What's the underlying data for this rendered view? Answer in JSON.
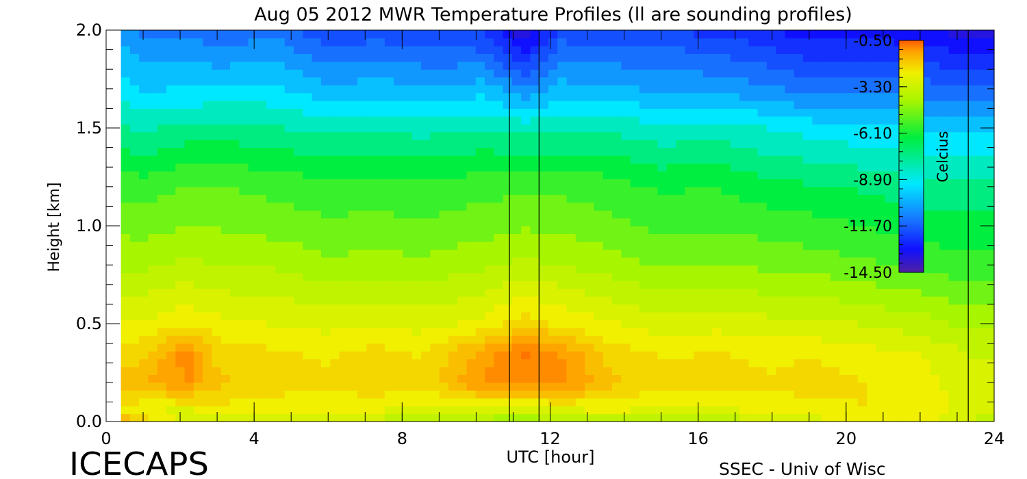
{
  "chart_data": {
    "type": "heatmap",
    "title": "Aug 05 2012 MWR Temperature Profiles (ll are sounding profiles)",
    "xlabel": "UTC [hour]",
    "ylabel": "Height [km]",
    "xlim": [
      0,
      24
    ],
    "ylim": [
      0,
      2.0
    ],
    "x_ticks": [
      0,
      4,
      8,
      12,
      16,
      20,
      24
    ],
    "x_tick_labels": [
      "0",
      "4",
      "8",
      "12",
      "16",
      "20",
      "24"
    ],
    "y_ticks": [
      0.0,
      0.5,
      1.0,
      1.5,
      2.0
    ],
    "y_tick_labels": [
      "0.0",
      "0.5",
      "1.0",
      "1.5",
      "2.0"
    ],
    "data_start_hour": 0.4,
    "colorbar": {
      "label": "Celcius",
      "placement": "top-right",
      "range": [
        -14.5,
        -0.5
      ],
      "ticks": [
        -0.5,
        -3.3,
        -6.1,
        -8.9,
        -11.7,
        -14.5
      ],
      "tick_labels": [
        "-0.50",
        "-3.30",
        "-6.10",
        "-8.90",
        "-11.70",
        "-14.50"
      ]
    },
    "sounding_times_hour": [
      10.9,
      11.7,
      23.3
    ],
    "height_km": [
      0.0,
      0.05,
      0.2,
      0.35,
      0.5,
      0.8,
      1.0,
      1.2,
      1.5,
      1.7,
      1.9,
      2.0
    ],
    "profiles": [
      {
        "hour": 0.4,
        "temp_c": [
          -1.6,
          -4.0,
          -2.9,
          -3.4,
          -4.2,
          -5.6,
          -6.2,
          -6.8,
          -8.3,
          -9.3,
          -10.0,
          -10.3
        ]
      },
      {
        "hour": 1.0,
        "temp_c": [
          -3.2,
          -4.3,
          -2.6,
          -3.3,
          -4.2,
          -5.6,
          -6.3,
          -6.9,
          -8.5,
          -9.6,
          -10.4,
          -10.8
        ]
      },
      {
        "hour": 2.2,
        "temp_c": [
          -4.5,
          -4.6,
          -1.9,
          -1.6,
          -3.8,
          -5.3,
          -6.0,
          -6.6,
          -8.2,
          -9.5,
          -10.3,
          -10.9
        ]
      },
      {
        "hour": 3.0,
        "temp_c": [
          -4.6,
          -4.0,
          -3.0,
          -3.3,
          -4.1,
          -5.5,
          -6.1,
          -6.6,
          -8.1,
          -9.5,
          -10.6,
          -11.2
        ]
      },
      {
        "hour": 4.5,
        "temp_c": [
          -4.8,
          -4.1,
          -3.4,
          -3.6,
          -4.3,
          -5.5,
          -6.3,
          -6.8,
          -8.3,
          -9.4,
          -10.3,
          -11.0
        ]
      },
      {
        "hour": 6.0,
        "temp_c": [
          -4.9,
          -4.1,
          -3.6,
          -3.8,
          -4.5,
          -5.9,
          -6.5,
          -7.0,
          -8.6,
          -10.0,
          -11.2,
          -11.9
        ]
      },
      {
        "hour": 7.2,
        "temp_c": [
          -5.0,
          -4.3,
          -3.2,
          -3.5,
          -4.3,
          -5.8,
          -6.4,
          -7.0,
          -8.5,
          -9.8,
          -11.0,
          -11.6
        ]
      },
      {
        "hour": 8.5,
        "temp_c": [
          -5.6,
          -4.6,
          -3.6,
          -3.8,
          -4.5,
          -5.9,
          -6.5,
          -7.1,
          -8.6,
          -10.0,
          -11.2,
          -11.8
        ]
      },
      {
        "hour": 10.2,
        "temp_c": [
          -5.8,
          -4.8,
          -1.8,
          -2.3,
          -4.1,
          -5.6,
          -6.3,
          -6.8,
          -8.4,
          -9.8,
          -11.3,
          -12.0
        ]
      },
      {
        "hour": 11.3,
        "temp_c": [
          -6.2,
          -5.0,
          -1.5,
          -1.3,
          -3.4,
          -5.3,
          -6.1,
          -6.8,
          -8.6,
          -10.6,
          -12.7,
          -13.6
        ]
      },
      {
        "hour": 12.3,
        "temp_c": [
          -5.6,
          -4.6,
          -1.7,
          -2.0,
          -3.8,
          -5.5,
          -6.2,
          -6.8,
          -8.5,
          -9.9,
          -11.0,
          -11.7
        ]
      },
      {
        "hour": 13.5,
        "temp_c": [
          -5.4,
          -4.3,
          -2.9,
          -3.3,
          -4.2,
          -5.7,
          -6.4,
          -6.9,
          -8.5,
          -10.0,
          -11.1,
          -11.8
        ]
      },
      {
        "hour": 15.0,
        "temp_c": [
          -5.5,
          -4.5,
          -3.5,
          -3.8,
          -4.6,
          -6.1,
          -6.8,
          -7.3,
          -8.8,
          -10.2,
          -11.2,
          -11.9
        ]
      },
      {
        "hour": 16.5,
        "temp_c": [
          -5.4,
          -4.4,
          -3.3,
          -3.7,
          -4.5,
          -6.0,
          -6.7,
          -7.2,
          -8.7,
          -10.3,
          -11.4,
          -12.1
        ]
      },
      {
        "hour": 18.0,
        "temp_c": [
          -5.0,
          -4.3,
          -3.6,
          -3.9,
          -4.7,
          -6.2,
          -6.9,
          -7.6,
          -9.0,
          -10.6,
          -11.8,
          -12.4
        ]
      },
      {
        "hour": 19.0,
        "temp_c": [
          -4.6,
          -4.1,
          -3.3,
          -3.8,
          -4.7,
          -6.3,
          -7.0,
          -7.7,
          -9.2,
          -10.9,
          -12.2,
          -12.8
        ]
      },
      {
        "hour": 20.5,
        "temp_c": [
          -3.7,
          -3.7,
          -3.7,
          -4.1,
          -4.9,
          -6.5,
          -7.2,
          -7.9,
          -9.4,
          -11.0,
          -12.1,
          -12.8
        ]
      },
      {
        "hour": 22.0,
        "temp_c": [
          -3.9,
          -3.9,
          -4.0,
          -4.3,
          -5.2,
          -6.8,
          -7.5,
          -8.1,
          -9.6,
          -11.0,
          -12.2,
          -13.0
        ]
      },
      {
        "hour": 23.3,
        "temp_c": [
          -5.0,
          -4.6,
          -4.6,
          -4.9,
          -5.6,
          -7.0,
          -7.6,
          -8.2,
          -9.7,
          -11.2,
          -12.6,
          -13.3
        ]
      },
      {
        "hour": 24.0,
        "temp_c": [
          -5.1,
          -4.7,
          -4.6,
          -4.9,
          -5.6,
          -7.0,
          -7.6,
          -8.2,
          -9.7,
          -11.2,
          -12.7,
          -13.4
        ]
      }
    ],
    "colormap": [
      "#5020a0",
      "#1010ff",
      "#1870ff",
      "#00e8ff",
      "#00ee40",
      "#a8f500",
      "#f0f000",
      "#ffa500",
      "#ff5a00"
    ]
  },
  "footer": {
    "logo_text": "ICECAPS",
    "credit": "SSEC - Univ of Wisc"
  }
}
